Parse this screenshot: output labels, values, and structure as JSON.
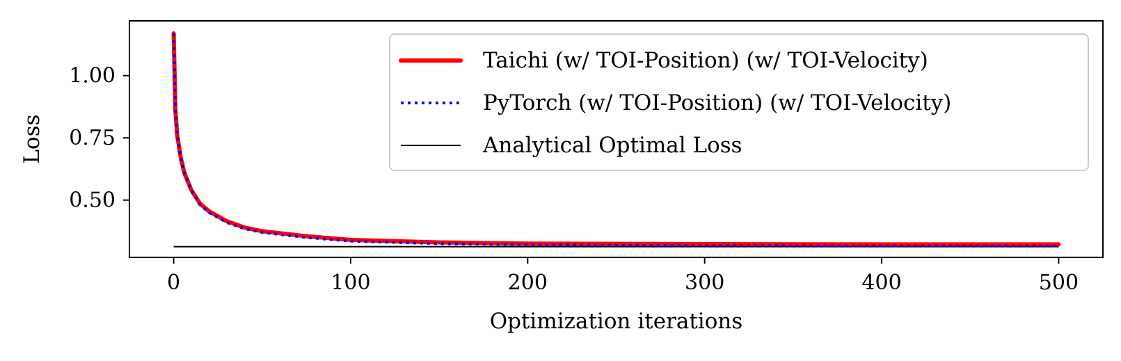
{
  "chart_data": {
    "type": "line",
    "title": "",
    "xlabel": "Optimization iterations",
    "ylabel": "Loss",
    "xlim": [
      -25,
      525
    ],
    "ylim": [
      0.27,
      1.22
    ],
    "xticks": [
      0,
      100,
      200,
      300,
      400,
      500
    ],
    "xtick_labels": [
      "0",
      "100",
      "200",
      "300",
      "400",
      "500"
    ],
    "yticks": [
      0.5,
      0.75,
      1.0
    ],
    "ytick_labels": [
      "0.50",
      "0.75",
      "1.00"
    ],
    "grid": false,
    "legend_position": "upper-right",
    "x": [
      0,
      1,
      2,
      4,
      6,
      10,
      15,
      20,
      30,
      40,
      50,
      75,
      100,
      150,
      200,
      300,
      400,
      500
    ],
    "series": [
      {
        "name": "Taichi (w/ TOI-Position) (w/ TOI-Velocity)",
        "color": "#ff0000",
        "style": "solid",
        "values": [
          1.17,
          0.86,
          0.76,
          0.67,
          0.61,
          0.54,
          0.485,
          0.455,
          0.415,
          0.39,
          0.375,
          0.355,
          0.34,
          0.33,
          0.325,
          0.323,
          0.322,
          0.322
        ]
      },
      {
        "name": "PyTorch (w/ TOI-Position) (w/ TOI-Velocity)",
        "color": "#0000ff",
        "style": "dotted",
        "values": [
          1.17,
          0.86,
          0.76,
          0.67,
          0.61,
          0.54,
          0.48,
          0.45,
          0.41,
          0.385,
          0.37,
          0.35,
          0.335,
          0.325,
          0.32,
          0.317,
          0.316,
          0.316
        ]
      },
      {
        "name": "Analytical Optimal Loss",
        "color": "#000000",
        "style": "solid-thin",
        "values": [
          0.313,
          0.313,
          0.313,
          0.313,
          0.313,
          0.313,
          0.313,
          0.313,
          0.313,
          0.313,
          0.313,
          0.313,
          0.313,
          0.313,
          0.313,
          0.313,
          0.313,
          0.313
        ]
      }
    ]
  }
}
